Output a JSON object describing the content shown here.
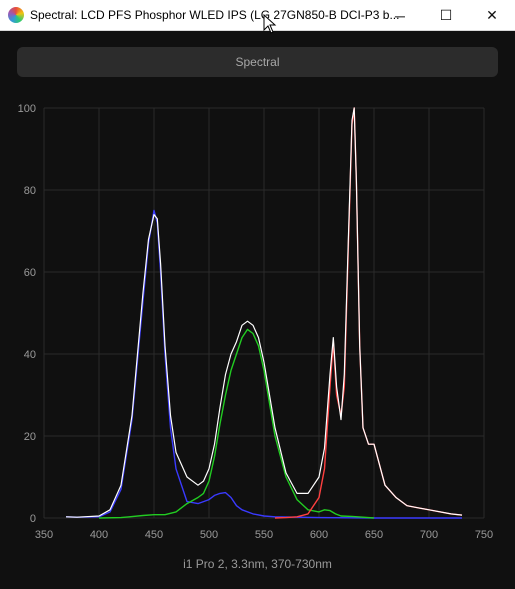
{
  "window": {
    "title": "Spectral: LCD PFS Phosphor WLED IPS (LG 27GN850-B DCI-P3 b...",
    "minimize_glyph": "─",
    "maximize_glyph": "☐",
    "close_glyph": "✕"
  },
  "tab": {
    "label": "Spectral"
  },
  "caption": "i1 Pro 2, 3.3nm, 370-730nm",
  "colors": {
    "background": "#101010",
    "grid": "#2a2a2a",
    "blue": "#3a3aff",
    "green": "#22cc22",
    "red": "#ff4040",
    "white": "#ffffff"
  },
  "chart_data": {
    "type": "line",
    "title": "",
    "xlabel": "",
    "ylabel": "",
    "xlim": [
      350,
      750
    ],
    "ylim": [
      0,
      100
    ],
    "x_ticks": [
      "350",
      "400",
      "450",
      "500",
      "550",
      "600",
      "650",
      "700",
      "750"
    ],
    "y_ticks": [
      "0",
      "20",
      "40",
      "60",
      "80",
      "100"
    ],
    "grid": true,
    "series": [
      {
        "color_key": "white",
        "x": [
          370,
          380,
          400,
          410,
          420,
          430,
          440,
          445,
          450,
          453,
          456,
          460,
          465,
          470,
          480,
          490,
          495,
          500,
          505,
          510,
          515,
          520,
          525,
          530,
          535,
          540,
          545,
          550,
          555,
          560,
          570,
          580,
          590,
          600,
          605,
          610,
          613,
          616,
          620,
          623,
          626,
          630,
          632,
          634,
          637,
          640,
          645,
          650,
          655,
          660,
          670,
          680,
          690,
          700,
          720,
          730
        ],
        "y": [
          0.3,
          0.2,
          0.5,
          2,
          8,
          25,
          55,
          68,
          74,
          73,
          62,
          42,
          25,
          16,
          10,
          8,
          9,
          12,
          18,
          27,
          35,
          40,
          43,
          47,
          48,
          47,
          44,
          38,
          30,
          22,
          11,
          6,
          6,
          10,
          17,
          35,
          44,
          32,
          24,
          35,
          62,
          97,
          100,
          82,
          42,
          22,
          18,
          18,
          13,
          8,
          5,
          3,
          2.5,
          2,
          1,
          0.7
        ]
      },
      {
        "color_key": "blue",
        "x": [
          370,
          380,
          400,
          410,
          420,
          430,
          440,
          445,
          450,
          453,
          456,
          460,
          465,
          470,
          480,
          490,
          500,
          505,
          510,
          515,
          520,
          525,
          530,
          540,
          550,
          560,
          580,
          600,
          650,
          730
        ],
        "y": [
          0.3,
          0.2,
          0.3,
          1.5,
          7,
          24,
          53,
          67,
          75,
          72,
          60,
          40,
          22,
          12,
          4,
          3.5,
          4.5,
          5.5,
          6,
          6.2,
          5,
          3,
          2,
          1,
          0.5,
          0.3,
          0.2,
          0.1,
          0,
          0
        ]
      },
      {
        "color_key": "green",
        "x": [
          400,
          420,
          440,
          450,
          460,
          470,
          480,
          490,
          495,
          500,
          505,
          510,
          515,
          520,
          525,
          530,
          535,
          540,
          545,
          550,
          555,
          560,
          570,
          580,
          590,
          600,
          605,
          610,
          615,
          620,
          630,
          640,
          650
        ],
        "y": [
          0,
          0.1,
          0.6,
          0.8,
          0.8,
          1.5,
          3.5,
          5,
          6,
          9,
          15,
          23,
          30,
          36,
          40,
          44,
          46,
          45,
          42,
          36,
          28,
          20,
          10,
          4.5,
          2,
          1.5,
          2,
          1.8,
          1,
          0.5,
          0.4,
          0.2,
          0
        ]
      },
      {
        "color_key": "red",
        "x": [
          560,
          570,
          580,
          590,
          600,
          605,
          610,
          613,
          616,
          620,
          623,
          626,
          630,
          632,
          634,
          637,
          640,
          645,
          650,
          655,
          660,
          670,
          680,
          690,
          700,
          720,
          730
        ],
        "y": [
          0,
          0.1,
          0.3,
          1,
          5,
          12,
          32,
          43,
          30,
          25,
          32,
          60,
          96,
          100,
          82,
          42,
          22,
          18,
          18,
          13,
          8,
          5,
          3,
          2.5,
          2,
          1,
          0.7
        ]
      }
    ]
  }
}
